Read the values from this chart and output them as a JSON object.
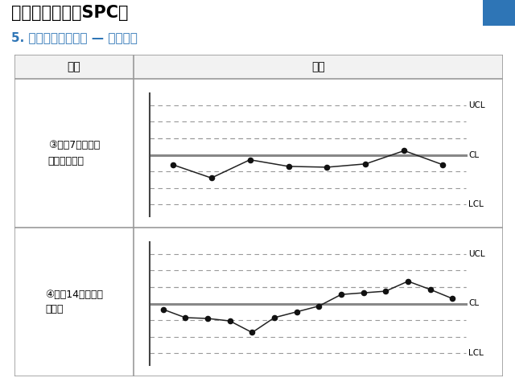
{
  "title": "统计过程控制（SPC）",
  "subtitle": "5. 控制图观察及分析 — 缺陷样式",
  "title_color": "#000000",
  "subtitle_color": "#2E75B6",
  "header_bg": "#2E75B6",
  "col1_header": "缺陷",
  "col2_header": "图示",
  "row1_label": "③连续7点在中心\n线之上或之下",
  "row2_label": "④连续14点交替上\n下变化",
  "ucl": 3,
  "cl": 0,
  "lcl": -3,
  "chart1_x": [
    1,
    2,
    3,
    4,
    5,
    6,
    7,
    8
  ],
  "chart1_y": [
    -0.6,
    -1.4,
    -0.3,
    -0.7,
    -0.75,
    -0.55,
    0.25,
    -0.6
  ],
  "chart2_x": [
    1,
    2,
    3,
    4,
    5,
    6,
    7,
    8,
    9,
    10,
    11,
    12,
    13,
    14
  ],
  "chart2_y": [
    -0.35,
    -0.85,
    -0.9,
    -1.05,
    -1.75,
    -0.85,
    -0.5,
    -0.15,
    0.55,
    0.65,
    0.75,
    1.35,
    0.85,
    0.3
  ],
  "bg_color": "#FFFFFF",
  "line_color": "#222222",
  "dot_color": "#111111",
  "dashed_color": "#999999",
  "cl_color": "#888888",
  "border_color": "#999999",
  "table_bg": "#FFFFFF",
  "header_row_bg": "#F2F2F2"
}
